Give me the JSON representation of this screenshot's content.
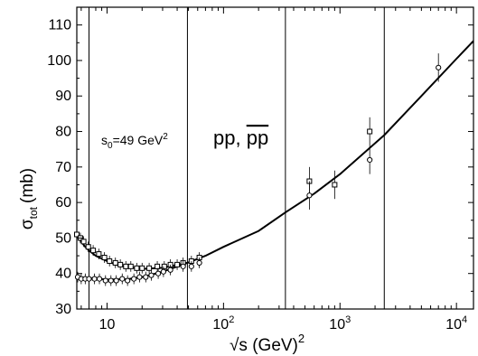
{
  "chart_data": {
    "type": "scatter",
    "title": "",
    "xlabel": "√s (GeV)",
    "xlabel_exponent": "2",
    "ylabel": "σ",
    "ylabel_subscript": "tot",
    "ylabel_unit": "(mb)",
    "x_scale": "log",
    "xlim": [
      5.5,
      14000
    ],
    "ylim": [
      30,
      115
    ],
    "x_ticks": [
      {
        "value": 10,
        "base": "10",
        "exp": ""
      },
      {
        "value": 100,
        "base": "10",
        "exp": "2"
      },
      {
        "value": 1000,
        "base": "10",
        "exp": "3"
      },
      {
        "value": 10000,
        "base": "10",
        "exp": "4"
      }
    ],
    "y_ticks": [
      30,
      40,
      50,
      60,
      70,
      80,
      90,
      100,
      110
    ],
    "grid": false,
    "annotations": [
      {
        "id": "s0",
        "text": "s",
        "sub": "0",
        "rest": "=49 GeV",
        "sup": "2"
      },
      {
        "id": "process",
        "text": "pp, ",
        "bar_text": "pp"
      }
    ],
    "vertical_lines": [
      7,
      49,
      340,
      2400
    ],
    "series": [
      {
        "marker": "square",
        "x": [
          5.5,
          5.9,
          6.3,
          6.9,
          7.6,
          8.5,
          9.5,
          10.5,
          11.8,
          13.0,
          14.5,
          16.0,
          18.0,
          20.0,
          23.0,
          27.0,
          31.0,
          35.0,
          40.0,
          45.0,
          53.0,
          62.0,
          546,
          900,
          1800
        ],
        "y": [
          51,
          50,
          49,
          47.5,
          46.5,
          45.5,
          44.5,
          43.5,
          43,
          42.5,
          42,
          42,
          41.5,
          41.5,
          41.5,
          42,
          42,
          42.5,
          42.5,
          43,
          43.5,
          44.5,
          66,
          65,
          80
        ]
      },
      {
        "marker": "circle",
        "x": [
          5.6,
          6.0,
          6.5,
          7.0,
          7.8,
          8.6,
          9.7,
          10.8,
          12.0,
          13.5,
          15.0,
          17.0,
          19.0,
          21.5,
          24.0,
          27.5,
          30.5,
          35.0,
          45.0,
          53.0,
          62.0,
          546,
          1800,
          7000
        ],
        "y": [
          39,
          38.5,
          38.5,
          38.5,
          38.5,
          38.5,
          38,
          38,
          38,
          38.5,
          38,
          38.5,
          39,
          39,
          39.5,
          40,
          40.5,
          41,
          42,
          42,
          43,
          62,
          72,
          98
        ]
      }
    ],
    "curves": [
      {
        "name": "",
        "x": [
          5.5,
          6.5,
          7,
          8,
          10,
          12,
          15,
          20,
          30,
          49,
          70,
          100,
          200,
          340,
          600,
          1000,
          2400,
          5000,
          10000,
          14000
        ],
        "y": [
          50.5,
          47.5,
          46.5,
          45,
          43.5,
          42.5,
          41.8,
          41.3,
          41.6,
          43,
          45,
          47.5,
          52,
          57.2,
          62.5,
          68,
          79,
          90,
          100.5,
          105.5
        ]
      },
      {
        "name": "",
        "x": [
          5.5,
          7,
          10,
          15,
          20,
          30,
          49
        ],
        "y": [
          39,
          38.7,
          38.3,
          38.4,
          39,
          40.5,
          43
        ]
      }
    ]
  }
}
